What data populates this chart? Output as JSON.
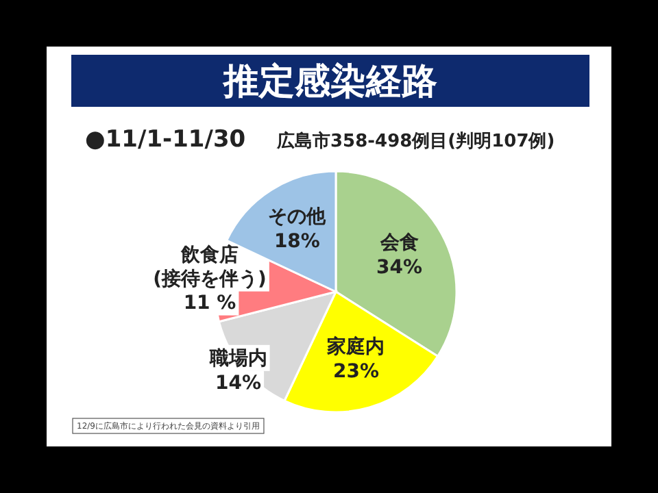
{
  "chart_data": {
    "type": "pie",
    "title": "推定感染経路",
    "subtitle": "●11/1-11/30",
    "annotations": [
      "広島市358-498例目(判明107例)",
      "12/9に広島市により行われた会見の資料より引用"
    ],
    "categories": [
      "会食",
      "家庭内",
      "職場内",
      "飲食店\n(接待を伴う)",
      "その他"
    ],
    "values": [
      34,
      23,
      14,
      11,
      18
    ],
    "colors": [
      "#a9d18e",
      "#ffff00",
      "#d9d9d9",
      "#ff7c80",
      "#9dc3e6"
    ],
    "value_labels": [
      "34%",
      "23%",
      "14%",
      "11 %",
      "18%"
    ]
  }
}
